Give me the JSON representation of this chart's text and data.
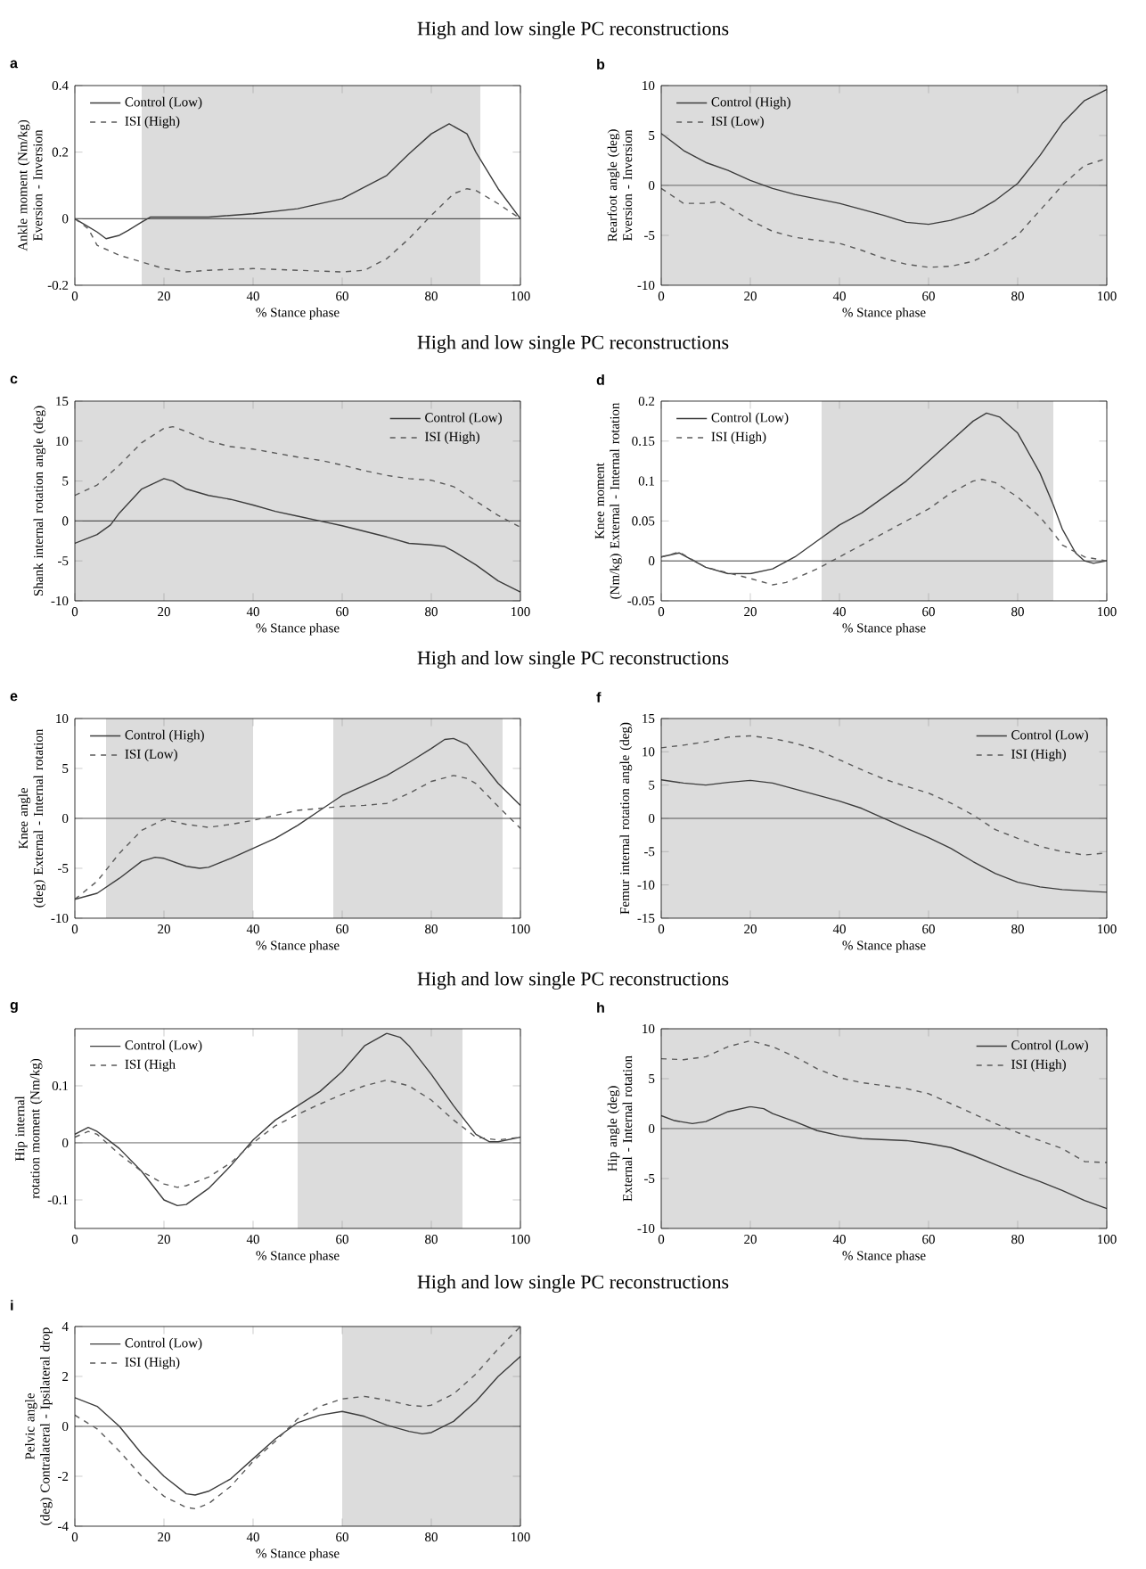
{
  "chart_data": [
    {
      "type": "line",
      "title": "High and low single PC reconstructions",
      "annotations": [
        "a"
      ],
      "xlabel": "% Stance phase",
      "ylabel": "Ankle moment (Nm/kg) Eversion - Inversion",
      "xlim": [
        0,
        100
      ],
      "xticks": [
        0,
        20,
        40,
        60,
        80,
        100
      ],
      "ylim": [
        -0.2,
        0.4
      ],
      "yticks": [
        -0.2,
        0,
        0.2,
        0.4
      ],
      "legend": "top left",
      "bands": [
        {
          "axis": "x",
          "from": 15,
          "to": 91,
          "color": "#dcdcdc"
        }
      ],
      "ref_lines": [
        {
          "axis": "y",
          "value": 0,
          "color": "#555555"
        }
      ],
      "series": [
        {
          "name": "Control (Low)",
          "color": "#3c3c3c",
          "line_style": "solid",
          "x": [
            0,
            5,
            7,
            10,
            12,
            15,
            17,
            20,
            30,
            40,
            50,
            60,
            70,
            75,
            80,
            84,
            88,
            90,
            95,
            100
          ],
          "values": [
            0,
            -0.04,
            -0.06,
            -0.05,
            -0.035,
            -0.01,
            0.005,
            0.005,
            0.005,
            0.015,
            0.03,
            0.06,
            0.13,
            0.195,
            0.255,
            0.285,
            0.255,
            0.2,
            0.09,
            0
          ]
        },
        {
          "name": "ISI (High)",
          "color": "#5a5a5a",
          "line_style": "dashed",
          "x": [
            0,
            3,
            5,
            10,
            15,
            20,
            25,
            30,
            40,
            50,
            60,
            65,
            70,
            75,
            80,
            85,
            88,
            90,
            95,
            100
          ],
          "values": [
            0,
            -0.03,
            -0.08,
            -0.11,
            -0.13,
            -0.15,
            -0.16,
            -0.155,
            -0.15,
            -0.155,
            -0.16,
            -0.155,
            -0.12,
            -0.06,
            0.01,
            0.075,
            0.09,
            0.085,
            0.045,
            0
          ]
        }
      ]
    },
    {
      "type": "line",
      "annotations": [
        "b"
      ],
      "xlabel": "% Stance phase",
      "ylabel": "Rearfoot angle (deg) Eversion - Inversion",
      "xlim": [
        0,
        100
      ],
      "xticks": [
        0,
        20,
        40,
        60,
        80,
        100
      ],
      "ylim": [
        -10,
        10
      ],
      "yticks": [
        -10,
        -5,
        0,
        5,
        10
      ],
      "legend": "top left",
      "bands": [
        {
          "axis": "x",
          "from": 0,
          "to": 100,
          "color": "#dcdcdc"
        }
      ],
      "ref_lines": [
        {
          "axis": "y",
          "value": 0,
          "color": "#555555"
        }
      ],
      "series": [
        {
          "name": "Control (High)",
          "color": "#3c3c3c",
          "line_style": "solid",
          "x": [
            0,
            5,
            10,
            15,
            20,
            25,
            30,
            40,
            50,
            55,
            60,
            65,
            70,
            75,
            80,
            85,
            90,
            95,
            100
          ],
          "values": [
            5.2,
            3.5,
            2.3,
            1.5,
            0.5,
            -0.3,
            -0.9,
            -1.8,
            -3.0,
            -3.7,
            -3.9,
            -3.5,
            -2.8,
            -1.5,
            0.2,
            3.0,
            6.2,
            8.5,
            9.6
          ]
        },
        {
          "name": "ISI (Low)",
          "color": "#5a5a5a",
          "line_style": "dashed",
          "x": [
            0,
            5,
            10,
            13,
            20,
            25,
            30,
            40,
            45,
            50,
            55,
            60,
            65,
            70,
            75,
            80,
            85,
            90,
            95,
            100
          ],
          "values": [
            -0.3,
            -1.8,
            -1.8,
            -1.6,
            -3.5,
            -4.6,
            -5.2,
            -5.8,
            -6.5,
            -7.3,
            -7.9,
            -8.2,
            -8.1,
            -7.6,
            -6.5,
            -5.0,
            -2.5,
            0,
            2.0,
            2.7
          ]
        }
      ]
    },
    {
      "type": "line",
      "title": "High and low single PC reconstructions",
      "annotations": [
        "c"
      ],
      "xlabel": "% Stance phase",
      "ylabel": "Shank internal rotation angle (deg)",
      "xlim": [
        0,
        100
      ],
      "xticks": [
        0,
        20,
        40,
        60,
        80,
        100
      ],
      "ylim": [
        -10,
        15
      ],
      "yticks": [
        -10,
        -5,
        0,
        5,
        10,
        15
      ],
      "legend": "top right",
      "bands": [
        {
          "axis": "x",
          "from": 0,
          "to": 100,
          "color": "#dcdcdc"
        }
      ],
      "ref_lines": [
        {
          "axis": "y",
          "value": 0,
          "color": "#555555"
        }
      ],
      "series": [
        {
          "name": "Control (Low)",
          "color": "#3c3c3c",
          "line_style": "solid",
          "x": [
            0,
            5,
            8,
            10,
            15,
            20,
            22,
            25,
            30,
            35,
            40,
            45,
            50,
            55,
            60,
            65,
            70,
            75,
            80,
            83,
            85,
            90,
            95,
            100
          ],
          "values": [
            -2.8,
            -1.7,
            -0.5,
            1.0,
            4.0,
            5.3,
            5.0,
            4.0,
            3.2,
            2.7,
            2.0,
            1.2,
            0.6,
            0.0,
            -0.6,
            -1.3,
            -2.0,
            -2.8,
            -3.0,
            -3.2,
            -3.8,
            -5.5,
            -7.5,
            -8.9
          ]
        },
        {
          "name": "ISI (High)",
          "color": "#5a5a5a",
          "line_style": "dashed",
          "x": [
            0,
            5,
            10,
            15,
            20,
            22,
            25,
            30,
            35,
            40,
            45,
            50,
            55,
            60,
            65,
            70,
            75,
            80,
            85,
            90,
            95,
            100
          ],
          "values": [
            3.2,
            4.5,
            7.0,
            9.8,
            11.6,
            11.8,
            11.2,
            10.0,
            9.3,
            9.0,
            8.5,
            8.0,
            7.6,
            7.0,
            6.3,
            5.7,
            5.3,
            5.1,
            4.3,
            2.5,
            0.7,
            -0.8
          ]
        }
      ]
    },
    {
      "type": "line",
      "annotations": [
        "d"
      ],
      "xlabel": "% Stance phase",
      "ylabel": "Knee moment (Nm/kg) External - Internal rotation",
      "xlim": [
        0,
        100
      ],
      "xticks": [
        0,
        20,
        40,
        60,
        80,
        100
      ],
      "ylim": [
        -0.05,
        0.2
      ],
      "yticks": [
        -0.05,
        0,
        0.05,
        0.1,
        0.15,
        0.2
      ],
      "legend": "top left",
      "bands": [
        {
          "axis": "x",
          "from": 36,
          "to": 88,
          "color": "#dcdcdc"
        }
      ],
      "ref_lines": [
        {
          "axis": "y",
          "value": 0,
          "color": "#555555"
        }
      ],
      "series": [
        {
          "name": "Control (Low)",
          "color": "#3c3c3c",
          "line_style": "solid",
          "x": [
            0,
            4,
            10,
            15,
            20,
            25,
            30,
            35,
            40,
            45,
            50,
            55,
            60,
            65,
            70,
            73,
            76,
            80,
            85,
            88,
            90,
            93,
            95,
            97,
            100
          ],
          "values": [
            0.005,
            0.01,
            -0.008,
            -0.016,
            -0.016,
            -0.01,
            0.005,
            0.025,
            0.045,
            0.06,
            0.08,
            0.1,
            0.125,
            0.15,
            0.175,
            0.185,
            0.18,
            0.16,
            0.11,
            0.07,
            0.04,
            0.01,
            0.0,
            -0.003,
            0
          ]
        },
        {
          "name": "ISI (High)",
          "color": "#5a5a5a",
          "line_style": "dashed",
          "x": [
            0,
            4,
            10,
            15,
            20,
            25,
            28,
            35,
            40,
            45,
            50,
            55,
            60,
            65,
            70,
            72,
            75,
            80,
            85,
            88,
            90,
            95,
            100
          ],
          "values": [
            0.005,
            0.011,
            -0.008,
            -0.015,
            -0.022,
            -0.03,
            -0.027,
            -0.01,
            0.005,
            0.02,
            0.035,
            0.05,
            0.065,
            0.085,
            0.1,
            0.102,
            0.098,
            0.08,
            0.055,
            0.035,
            0.02,
            0.005,
            0
          ]
        }
      ]
    },
    {
      "type": "line",
      "title": "High and low single PC reconstructions",
      "annotations": [
        "e"
      ],
      "xlabel": "% Stance phase",
      "ylabel": "Knee angle (deg) External - Internal rotation",
      "xlim": [
        0,
        100
      ],
      "xticks": [
        0,
        20,
        40,
        60,
        80,
        100
      ],
      "ylim": [
        -10,
        10
      ],
      "yticks": [
        -10,
        -5,
        0,
        5,
        10
      ],
      "legend": "top left",
      "bands": [
        {
          "axis": "x",
          "from": 7,
          "to": 40,
          "color": "#dcdcdc"
        },
        {
          "axis": "x",
          "from": 58,
          "to": 96,
          "color": "#dcdcdc"
        }
      ],
      "ref_lines": [
        {
          "axis": "y",
          "value": 0,
          "color": "#555555"
        }
      ],
      "series": [
        {
          "name": "Control (High)",
          "color": "#3c3c3c",
          "line_style": "solid",
          "x": [
            0,
            5,
            10,
            15,
            18,
            20,
            25,
            28,
            30,
            35,
            40,
            45,
            50,
            55,
            60,
            65,
            70,
            75,
            80,
            83,
            85,
            88,
            90,
            95,
            100
          ],
          "values": [
            -8.1,
            -7.5,
            -6.0,
            -4.3,
            -3.9,
            -4.0,
            -4.8,
            -5.0,
            -4.9,
            -4.0,
            -3.0,
            -2.0,
            -0.7,
            0.8,
            2.3,
            3.3,
            4.3,
            5.6,
            7.0,
            7.9,
            8.0,
            7.4,
            6.3,
            3.5,
            1.3
          ]
        },
        {
          "name": "ISI (Low)",
          "color": "#5a5a5a",
          "line_style": "dashed",
          "x": [
            0,
            5,
            10,
            15,
            20,
            25,
            30,
            35,
            40,
            45,
            50,
            55,
            60,
            65,
            70,
            75,
            80,
            85,
            88,
            90,
            95,
            100
          ],
          "values": [
            -8.1,
            -6.3,
            -3.5,
            -1.2,
            -0.1,
            -0.6,
            -0.9,
            -0.6,
            -0.2,
            0.3,
            0.8,
            1.0,
            1.2,
            1.3,
            1.5,
            2.5,
            3.7,
            4.3,
            4.0,
            3.5,
            1.2,
            -1.0
          ]
        }
      ]
    },
    {
      "type": "line",
      "annotations": [
        "f"
      ],
      "xlabel": "% Stance phase",
      "ylabel": "Femur internal rotation angle (deg)",
      "xlim": [
        0,
        100
      ],
      "xticks": [
        0,
        20,
        40,
        60,
        80,
        100
      ],
      "ylim": [
        -15,
        15
      ],
      "yticks": [
        -15,
        -10,
        -5,
        0,
        5,
        10,
        15
      ],
      "legend": "top right",
      "bands": [
        {
          "axis": "x",
          "from": 0,
          "to": 100,
          "color": "#dcdcdc"
        }
      ],
      "ref_lines": [
        {
          "axis": "y",
          "value": 0,
          "color": "#555555"
        }
      ],
      "series": [
        {
          "name": "Control (Low)",
          "color": "#3c3c3c",
          "line_style": "solid",
          "x": [
            0,
            5,
            10,
            15,
            20,
            25,
            30,
            35,
            40,
            45,
            50,
            55,
            60,
            65,
            70,
            75,
            80,
            85,
            90,
            95,
            100
          ],
          "values": [
            5.8,
            5.3,
            5.0,
            5.4,
            5.7,
            5.3,
            4.4,
            3.5,
            2.6,
            1.5,
            0.0,
            -1.5,
            -2.9,
            -4.5,
            -6.5,
            -8.3,
            -9.6,
            -10.3,
            -10.7,
            -10.9,
            -11.1
          ]
        },
        {
          "name": "ISI (High)",
          "color": "#5a5a5a",
          "line_style": "dashed",
          "x": [
            0,
            5,
            10,
            15,
            20,
            25,
            30,
            35,
            40,
            45,
            50,
            55,
            60,
            65,
            70,
            75,
            80,
            85,
            90,
            95,
            100
          ],
          "values": [
            10.6,
            11.0,
            11.5,
            12.2,
            12.4,
            12.0,
            11.3,
            10.3,
            8.8,
            7.3,
            5.9,
            4.8,
            3.8,
            2.3,
            0.5,
            -1.7,
            -3.0,
            -4.2,
            -5.0,
            -5.5,
            -5.2
          ]
        }
      ]
    },
    {
      "type": "line",
      "title": "High and low single PC reconstructions",
      "annotations": [
        "g"
      ],
      "xlabel": "% Stance phase",
      "ylabel": "Hip internal rotation moment (Nm/kg)",
      "xlim": [
        0,
        100
      ],
      "xticks": [
        0,
        20,
        40,
        60,
        80,
        100
      ],
      "ylim": [
        -0.15,
        0.2
      ],
      "yticks": [
        -0.1,
        0,
        0.1
      ],
      "legend": "top left",
      "bands": [
        {
          "axis": "x",
          "from": 50,
          "to": 87,
          "color": "#dcdcdc"
        }
      ],
      "ref_lines": [
        {
          "axis": "y",
          "value": 0,
          "color": "#555555"
        }
      ],
      "series": [
        {
          "name": "Control (Low)",
          "color": "#3c3c3c",
          "line_style": "solid",
          "x": [
            0,
            3,
            5,
            10,
            15,
            20,
            23,
            25,
            30,
            35,
            40,
            45,
            50,
            55,
            60,
            65,
            70,
            73,
            75,
            80,
            85,
            90,
            93,
            95,
            100
          ],
          "values": [
            0.015,
            0.027,
            0.02,
            -0.01,
            -0.05,
            -0.1,
            -0.11,
            -0.108,
            -0.08,
            -0.04,
            0.005,
            0.04,
            0.065,
            0.09,
            0.125,
            0.17,
            0.192,
            0.185,
            0.17,
            0.12,
            0.065,
            0.015,
            0.002,
            0.002,
            0.01
          ]
        },
        {
          "name": "ISI (High",
          "color": "#5a5a5a",
          "line_style": "dashed",
          "x": [
            0,
            3,
            5,
            10,
            15,
            20,
            23,
            25,
            30,
            35,
            40,
            45,
            50,
            55,
            60,
            65,
            70,
            75,
            80,
            85,
            90,
            95,
            100
          ],
          "values": [
            0.01,
            0.02,
            0.015,
            -0.02,
            -0.05,
            -0.072,
            -0.078,
            -0.075,
            -0.06,
            -0.035,
            0.0,
            0.03,
            0.05,
            0.068,
            0.085,
            0.1,
            0.11,
            0.1,
            0.075,
            0.04,
            0.01,
            0.005,
            0.01
          ]
        }
      ]
    },
    {
      "type": "line",
      "annotations": [
        "h"
      ],
      "xlabel": "% Stance phase",
      "ylabel": "Hip angle (deg) External - Internal rotation",
      "xlim": [
        0,
        100
      ],
      "xticks": [
        0,
        20,
        40,
        60,
        80,
        100
      ],
      "ylim": [
        -10,
        10
      ],
      "yticks": [
        -10,
        -5,
        0,
        5,
        10
      ],
      "legend": "top right",
      "bands": [
        {
          "axis": "x",
          "from": 0,
          "to": 100,
          "color": "#dcdcdc"
        }
      ],
      "ref_lines": [
        {
          "axis": "y",
          "value": 0,
          "color": "#555555"
        }
      ],
      "series": [
        {
          "name": "Control (Low)",
          "color": "#3c3c3c",
          "line_style": "solid",
          "x": [
            0,
            3,
            7,
            10,
            15,
            20,
            23,
            25,
            30,
            35,
            40,
            45,
            50,
            55,
            60,
            65,
            70,
            75,
            80,
            85,
            90,
            95,
            100
          ],
          "values": [
            1.3,
            0.8,
            0.5,
            0.7,
            1.7,
            2.2,
            2.0,
            1.5,
            0.7,
            -0.2,
            -0.7,
            -1.0,
            -1.1,
            -1.2,
            -1.5,
            -1.9,
            -2.7,
            -3.6,
            -4.5,
            -5.3,
            -6.2,
            -7.2,
            -8.0
          ]
        },
        {
          "name": "ISI (High)",
          "color": "#5a5a5a",
          "line_style": "dashed",
          "x": [
            0,
            5,
            10,
            15,
            20,
            25,
            30,
            35,
            40,
            45,
            50,
            55,
            60,
            65,
            70,
            75,
            80,
            85,
            90,
            95,
            100
          ],
          "values": [
            7.0,
            6.9,
            7.2,
            8.2,
            8.8,
            8.2,
            7.2,
            6.0,
            5.1,
            4.6,
            4.3,
            4.0,
            3.5,
            2.5,
            1.5,
            0.5,
            -0.4,
            -1.2,
            -2.0,
            -3.3,
            -3.4
          ]
        }
      ]
    },
    {
      "type": "line",
      "title": "High and low single PC reconstructions",
      "annotations": [
        "i"
      ],
      "xlabel": "% Stance phase",
      "ylabel": "Pelvic angle (deg) Contralateral - Ipsilateral drop",
      "xlim": [
        0,
        100
      ],
      "xticks": [
        0,
        20,
        40,
        60,
        80,
        100
      ],
      "ylim": [
        -4,
        4
      ],
      "yticks": [
        -4,
        -2,
        0,
        2,
        4
      ],
      "legend": "top left",
      "bands": [
        {
          "axis": "x",
          "from": 60,
          "to": 100,
          "color": "#dcdcdc"
        }
      ],
      "ref_lines": [
        {
          "axis": "y",
          "value": 0,
          "color": "#555555"
        }
      ],
      "series": [
        {
          "name": "Control (Low)",
          "color": "#3c3c3c",
          "line_style": "solid",
          "x": [
            0,
            5,
            10,
            15,
            20,
            25,
            27,
            30,
            35,
            40,
            45,
            50,
            55,
            60,
            65,
            70,
            75,
            78,
            80,
            85,
            90,
            95,
            100
          ],
          "values": [
            1.15,
            0.8,
            0.0,
            -1.1,
            -2.0,
            -2.7,
            -2.75,
            -2.6,
            -2.1,
            -1.3,
            -0.5,
            0.15,
            0.45,
            0.6,
            0.4,
            0.05,
            -0.2,
            -0.3,
            -0.25,
            0.2,
            1.0,
            2.0,
            2.8
          ]
        },
        {
          "name": "ISI (High)",
          "color": "#5a5a5a",
          "line_style": "dashed",
          "x": [
            0,
            5,
            10,
            15,
            20,
            25,
            27,
            30,
            35,
            40,
            45,
            50,
            55,
            60,
            65,
            70,
            75,
            78,
            80,
            85,
            90,
            95,
            100
          ],
          "values": [
            0.45,
            -0.1,
            -1.0,
            -2.0,
            -2.8,
            -3.25,
            -3.3,
            -3.1,
            -2.4,
            -1.4,
            -0.6,
            0.3,
            0.8,
            1.1,
            1.2,
            1.05,
            0.85,
            0.8,
            0.85,
            1.3,
            2.1,
            3.1,
            4.0
          ]
        }
      ]
    }
  ]
}
